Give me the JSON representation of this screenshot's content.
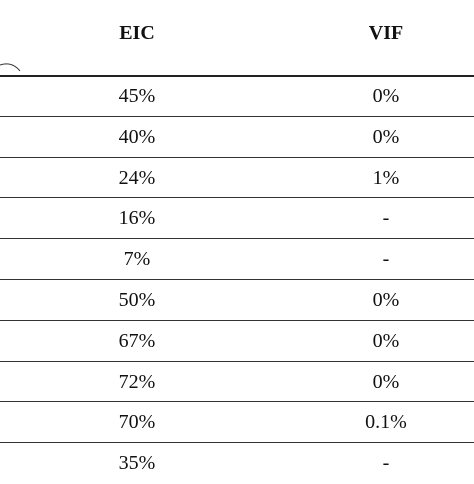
{
  "table": {
    "headers": {
      "eic": "EIC",
      "vif": "VIF"
    },
    "rows": [
      {
        "eic": "45%",
        "vif": "0%"
      },
      {
        "eic": "40%",
        "vif": "0%"
      },
      {
        "eic": "24%",
        "vif": "1%"
      },
      {
        "eic": "16%",
        "vif": "-"
      },
      {
        "eic": "7%",
        "vif": "-"
      },
      {
        "eic": "50%",
        "vif": "0%"
      },
      {
        "eic": "67%",
        "vif": "0%"
      },
      {
        "eic": "72%",
        "vif": "0%"
      },
      {
        "eic": "70%",
        "vif": "0.1%"
      },
      {
        "eic": "35%",
        "vif": "-"
      }
    ]
  }
}
